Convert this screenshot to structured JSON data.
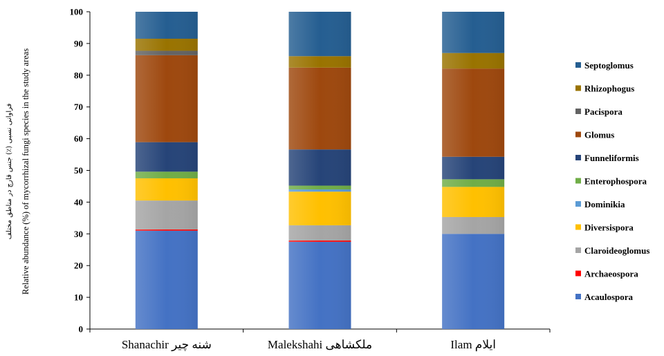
{
  "chart_data": {
    "type": "bar",
    "stacked": true,
    "ylabel_fa": "فراوانی نسبی (٪) جنس قارچ در مناطق مختلف",
    "ylabel": "Relative abundance (%) of mycorrhizal fungi species in the study areas",
    "ylim": [
      0,
      100
    ],
    "yticks": [
      "0",
      "10",
      "20",
      "30",
      "40",
      "50",
      "60",
      "70",
      "80",
      "90",
      "100"
    ],
    "categories": [
      "Shanachir شنه چیر",
      "Malekshahi  ملکشاهی",
      "Ilam  ایلام"
    ],
    "grid": false,
    "legend_position": "right",
    "series": [
      {
        "name": "Acaulospora",
        "color": "#4472C4",
        "values": [
          31,
          27.5,
          30
        ]
      },
      {
        "name": "Archaeospora",
        "color": "#FF0000",
        "values": [
          0.4,
          0.4,
          0
        ]
      },
      {
        "name": "Claroideoglomus",
        "color": "#A5A5A5",
        "values": [
          9.1,
          4.8,
          5.3
        ]
      },
      {
        "name": "Diversispora",
        "color": "#FFC000",
        "values": [
          7,
          10.6,
          9.5
        ]
      },
      {
        "name": "Dominikia",
        "color": "#5B9BD5",
        "values": [
          0,
          0.7,
          0
        ]
      },
      {
        "name": "Enterophospora",
        "color": "#70AD47",
        "values": [
          2.1,
          1.2,
          2.4
        ]
      },
      {
        "name": "Funneliformis",
        "color": "#264478",
        "values": [
          9.3,
          11.4,
          7.1
        ]
      },
      {
        "name": "Glomus",
        "color": "#9E480E",
        "values": [
          27.4,
          25.8,
          27.8
        ]
      },
      {
        "name": "Pacispora",
        "color": "#636363",
        "values": [
          1.4,
          0,
          0
        ]
      },
      {
        "name": "Rhizophogus",
        "color": "#997300",
        "values": [
          3.8,
          3.6,
          4.9
        ]
      },
      {
        "name": "Septoglomus",
        "color": "#255E91",
        "values": [
          8.5,
          14,
          13
        ]
      }
    ]
  }
}
